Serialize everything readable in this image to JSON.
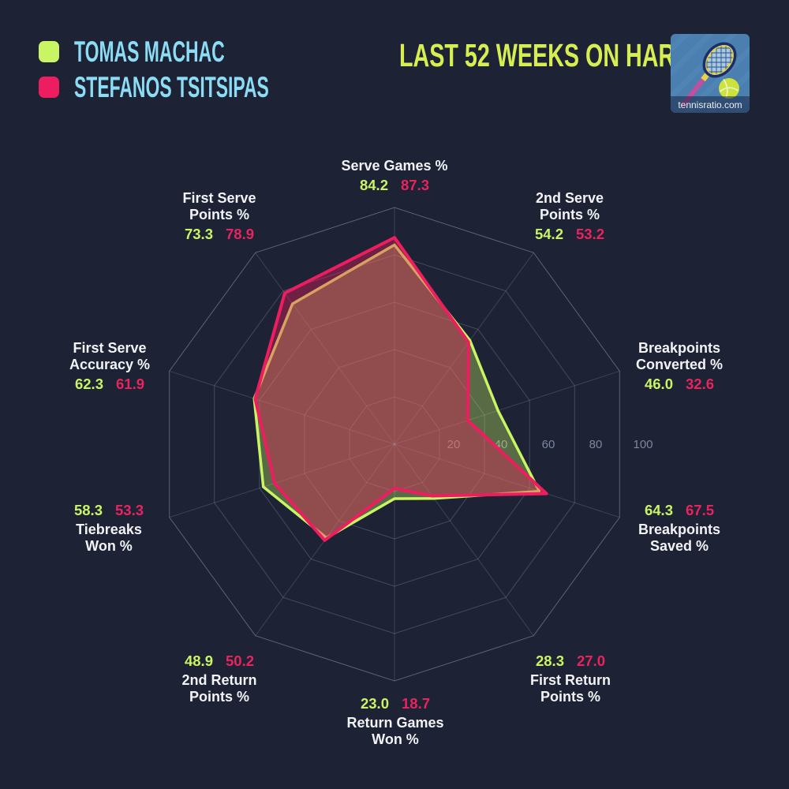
{
  "header": {
    "title": "LAST 52 WEEKS ON HARD",
    "title_color": "#d6ee52",
    "logo": {
      "site": "tennisratio.com"
    }
  },
  "legend": {
    "name_color": "#8bdcf4",
    "players": [
      {
        "name": "TOMAS MACHAC",
        "color": "#c9f464"
      },
      {
        "name": "STEFANOS TSITSIPAS",
        "color": "#ee1d5f"
      }
    ]
  },
  "chart_data": {
    "type": "radar",
    "range": [
      0,
      100
    ],
    "ticks": [
      20,
      40,
      60,
      80,
      100
    ],
    "start_angle_deg": 90,
    "direction": "clockwise",
    "grid": "decagon",
    "axes": [
      {
        "label": "Serve Games %",
        "machac": "84.2",
        "tsitsipas": "87.3"
      },
      {
        "label": "2nd Serve Points %",
        "machac": "54.2",
        "tsitsipas": "53.2"
      },
      {
        "label": "Breakpoints Converted %",
        "machac": "46.0",
        "tsitsipas": "32.6"
      },
      {
        "label": "Breakpoints Saved %",
        "machac": "64.3",
        "tsitsipas": "67.5"
      },
      {
        "label": "First Return Points %",
        "machac": "28.3",
        "tsitsipas": "27.0"
      },
      {
        "label": "Return Games Won %",
        "machac": "23.0",
        "tsitsipas": "18.7"
      },
      {
        "label": "2nd Return Points %",
        "machac": "48.9",
        "tsitsipas": "50.2"
      },
      {
        "label": "Tiebreaks Won %",
        "machac": "58.3",
        "tsitsipas": "53.3"
      },
      {
        "label": "First Serve Accuracy %",
        "machac": "62.3",
        "tsitsipas": "61.9"
      },
      {
        "label": "First Serve Points %",
        "machac": "73.3",
        "tsitsipas": "78.9"
      }
    ],
    "series": [
      {
        "name": "Tomas Machac",
        "color": "#c9f464",
        "values": [
          84.2,
          54.2,
          46.0,
          64.3,
          28.3,
          23.0,
          48.9,
          58.3,
          62.3,
          73.3
        ]
      },
      {
        "name": "Stefanos Tsitsipas",
        "color": "#ee1d5f",
        "values": [
          87.3,
          53.2,
          32.6,
          67.5,
          27.0,
          18.7,
          50.2,
          53.3,
          61.9,
          78.9
        ]
      }
    ],
    "colors": {
      "background": "#1d2234",
      "grid": "#8e96b4",
      "tick_label": "#7e87a0",
      "axis_label": "#f2f3f7"
    }
  }
}
